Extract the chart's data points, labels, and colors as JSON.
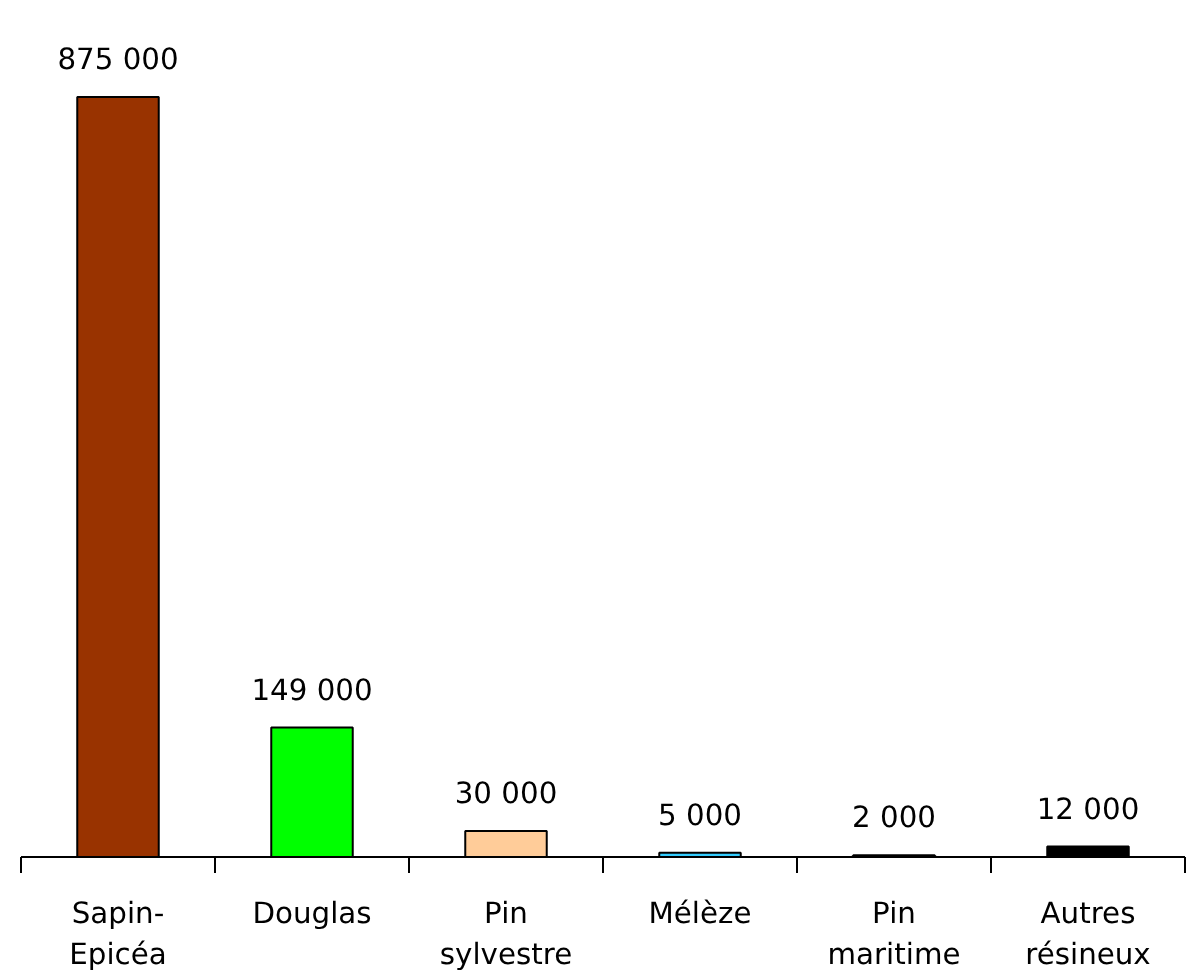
{
  "chart_data": {
    "type": "bar",
    "categories": [
      "Sapin-\nEpicéa",
      "Douglas",
      "Pin\nsylvestre",
      "Mélèze",
      "Pin\nmaritime",
      "Autres\nrésineux"
    ],
    "values": [
      875000,
      149000,
      30000,
      5000,
      2000,
      12000
    ],
    "colors": [
      "#993300",
      "#00ff00",
      "#ffcc99",
      "#33ccff",
      "#333333",
      "#000000"
    ],
    "value_labels": [
      "875 000",
      "149 000",
      "30 000",
      "5 000",
      "2 000",
      "12 000"
    ]
  }
}
